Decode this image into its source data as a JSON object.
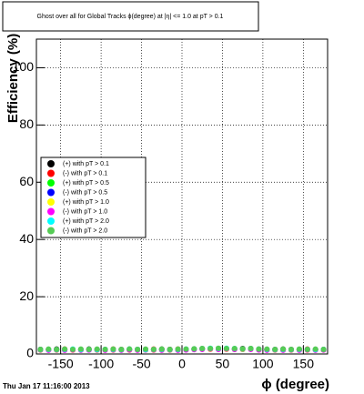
{
  "chart_data": {
    "type": "scatter",
    "title": "Ghost over all for Global Tracks ϕ(degree) at |η| <= 1.0 at pT > 0.1",
    "x_label": "ϕ (degree)",
    "y_label": "Efficiency (%)",
    "footer": "Thu Jan 17 11:16:00 2013",
    "xlim": [
      -180,
      180
    ],
    "ylim": [
      0,
      110
    ],
    "xticks": [
      -150,
      -100,
      -50,
      0,
      50,
      100,
      150
    ],
    "yticks": [
      0,
      20,
      40,
      60,
      80,
      100
    ],
    "grid": true,
    "legend": "left",
    "x": [
      -175,
      -165,
      -155,
      -145,
      -135,
      -125,
      -115,
      -105,
      -95,
      -85,
      -75,
      -65,
      -55,
      -45,
      -35,
      -25,
      -15,
      -5,
      5,
      15,
      25,
      35,
      45,
      55,
      65,
      75,
      85,
      95,
      105,
      115,
      125,
      135,
      145,
      155,
      165,
      175
    ],
    "series": [
      {
        "name": "(+) with pT > 0.1",
        "color": "#000000",
        "values": [
          1.6,
          1.5,
          1.7,
          1.6,
          1.5,
          1.6,
          1.7,
          1.5,
          1.6,
          1.6,
          1.5,
          1.7,
          1.6,
          1.5,
          1.6,
          1.7,
          1.6,
          1.5,
          1.6,
          1.7,
          1.8,
          1.9,
          1.8,
          1.7,
          1.8,
          1.9,
          1.8,
          1.6,
          1.5,
          1.6,
          1.7,
          1.5,
          1.6,
          1.6,
          1.5,
          1.6
        ]
      },
      {
        "name": "(-) with pT > 0.1",
        "color": "#ff0000",
        "values": [
          1.5,
          1.6,
          1.5,
          1.7,
          1.6,
          1.5,
          1.6,
          1.6,
          1.5,
          1.7,
          1.6,
          1.5,
          1.6,
          1.6,
          1.7,
          1.5,
          1.6,
          1.7,
          1.6,
          1.8,
          1.9,
          1.8,
          1.9,
          1.8,
          1.7,
          1.8,
          1.9,
          1.7,
          1.6,
          1.5,
          1.6,
          1.6,
          1.5,
          1.7,
          1.6,
          1.5
        ]
      },
      {
        "name": "(+) with pT > 0.5",
        "color": "#00ff00",
        "values": [
          1.4,
          1.5,
          1.4,
          1.5,
          1.6,
          1.4,
          1.5,
          1.4,
          1.5,
          1.5,
          1.4,
          1.6,
          1.5,
          1.4,
          1.5,
          1.5,
          1.4,
          1.5,
          1.6,
          1.7,
          1.8,
          1.7,
          1.8,
          1.7,
          1.6,
          1.7,
          1.8,
          1.6,
          1.5,
          1.4,
          1.5,
          1.4,
          1.5,
          1.5,
          1.4,
          1.5
        ]
      },
      {
        "name": "(-) with pT > 0.5",
        "color": "#0000ff",
        "values": [
          1.5,
          1.4,
          1.5,
          1.4,
          1.5,
          1.5,
          1.4,
          1.5,
          1.4,
          1.6,
          1.5,
          1.4,
          1.5,
          1.5,
          1.4,
          1.6,
          1.5,
          1.4,
          1.5,
          1.6,
          1.7,
          1.8,
          1.7,
          1.8,
          1.7,
          1.6,
          1.7,
          1.5,
          1.4,
          1.5,
          1.4,
          1.5,
          1.4,
          1.5,
          1.5,
          1.4
        ]
      },
      {
        "name": "(+) with pT > 1.0",
        "color": "#ffff00",
        "values": [
          1.3,
          1.4,
          1.3,
          1.4,
          1.3,
          1.4,
          1.5,
          1.3,
          1.4,
          1.3,
          1.4,
          1.3,
          1.4,
          1.4,
          1.3,
          1.4,
          1.3,
          1.4,
          1.5,
          1.6,
          1.7,
          1.6,
          1.7,
          1.6,
          1.7,
          1.6,
          1.7,
          1.5,
          1.4,
          1.3,
          1.4,
          1.3,
          1.4,
          1.3,
          1.4,
          1.4
        ]
      },
      {
        "name": "(-) with pT > 1.0",
        "color": "#ff00ff",
        "values": [
          1.4,
          1.3,
          1.4,
          1.3,
          1.4,
          1.3,
          1.4,
          1.4,
          1.3,
          1.4,
          1.3,
          1.4,
          1.3,
          1.4,
          1.4,
          1.3,
          1.4,
          1.3,
          1.4,
          1.5,
          1.6,
          1.7,
          1.6,
          1.7,
          1.6,
          1.7,
          1.6,
          1.4,
          1.3,
          1.4,
          1.3,
          1.4,
          1.3,
          1.4,
          1.3,
          1.4
        ]
      },
      {
        "name": "(+) with pT > 2.0",
        "color": "#00ffff",
        "values": [
          1.5,
          1.6,
          1.5,
          1.6,
          1.7,
          1.5,
          1.6,
          1.5,
          1.6,
          1.6,
          1.5,
          1.7,
          1.6,
          1.5,
          1.6,
          1.6,
          1.5,
          1.6,
          1.7,
          1.8,
          1.9,
          2.0,
          1.9,
          2.0,
          1.9,
          1.8,
          1.9,
          1.7,
          1.6,
          1.5,
          1.6,
          1.5,
          1.6,
          1.6,
          1.5,
          1.6
        ]
      },
      {
        "name": "(-) with pT > 2.0",
        "color": "#55cc55",
        "values": [
          1.6,
          1.7,
          1.6,
          1.7,
          1.6,
          1.7,
          1.6,
          1.7,
          1.6,
          1.7,
          1.6,
          1.7,
          1.6,
          1.7,
          1.6,
          1.7,
          1.6,
          1.7,
          1.7,
          1.8,
          1.9,
          1.9,
          2.0,
          1.9,
          1.9,
          1.8,
          1.9,
          1.7,
          1.7,
          1.6,
          1.7,
          1.6,
          1.7,
          1.6,
          1.7,
          1.6
        ]
      }
    ]
  }
}
